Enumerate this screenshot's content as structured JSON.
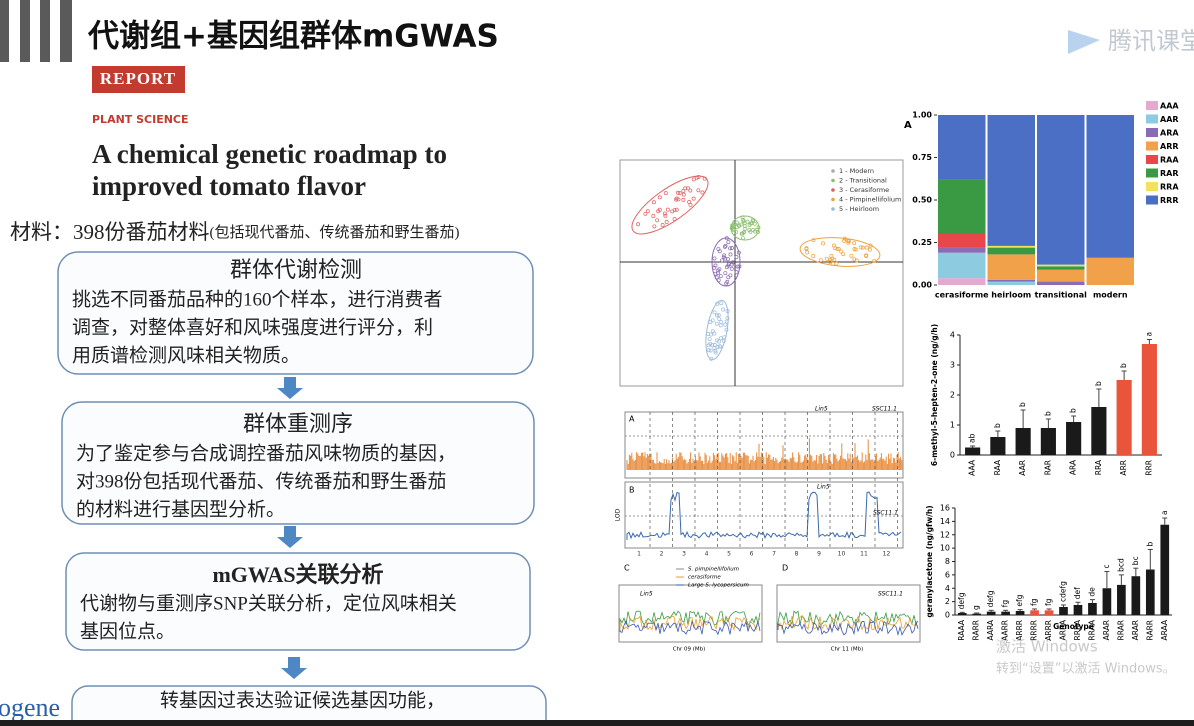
{
  "header": {
    "title": "代谢组+基因组群体mGWAS",
    "logo": "腾讯课堂"
  },
  "paper": {
    "label": "REPORT",
    "section": "PLANT SCIENCE",
    "title_lines": [
      "A chemical genetic roadmap to",
      "improved tomato flavor"
    ]
  },
  "material": {
    "text": "材料：398份番茄材料",
    "note": "(包括现代番茄、传统番茄和野生番茄)"
  },
  "steps": [
    {
      "title": "群体代谢检测",
      "lines": [
        "挑选不同番茄品种的160个样本，进行消费者",
        "调查，对整体喜好和风味强度进行评分，利",
        "用质谱检测风味相关物质。"
      ]
    },
    {
      "title": "群体重测序",
      "lines": [
        "为了鉴定参与合成调控番茄风味物质的基因，",
        "对398份包括现代番茄、传统番茄和野生番茄",
        "的材料进行基因型分析。"
      ]
    },
    {
      "title": "mGWAS关联分析",
      "lines": [
        "代谢物与重测序SNP关联分析，定位风味相关",
        "基因位点。"
      ]
    },
    {
      "lines": [
        "转基因过表达验证候选基因功能，"
      ]
    }
  ],
  "footer": {
    "logo": "ogene",
    "watermark": [
      "激活 Windows",
      "转到“设置”以激活 Windows。"
    ]
  },
  "figures": {
    "pca": {
      "legend": [
        "1 - Modern",
        "2 - Transitional",
        "3 - Cerasiforme",
        "4 - Pimpinellifolium",
        "5 - Heirloom"
      ]
    },
    "gwas": {
      "panels": [
        "A",
        "B",
        "C",
        "D"
      ],
      "peaks": [
        "Lin5",
        "SSC11.1"
      ],
      "ylabel": "LOD",
      "chromosomes": [
        1,
        2,
        3,
        4,
        5,
        6,
        7,
        8,
        9,
        10,
        11,
        12
      ],
      "legend": [
        "S. pimpinellifolium",
        "cerasiforme",
        "Large S. lycopersicum"
      ],
      "xlabels": [
        "Chr 09 (Mb)",
        "Chr 11 (Mb)"
      ]
    },
    "composition": {
      "panel": "A",
      "categories": [
        "cerasiforme",
        "heirloom",
        "transitional",
        "modern"
      ],
      "ylim": [
        0,
        1
      ],
      "yticks": [
        {
          "value": 0,
          "label": "0.00"
        },
        {
          "value": 0.25,
          "label": "0.25"
        },
        {
          "value": 0.5,
          "label": "0.50"
        },
        {
          "value": 0.75,
          "label": "0.75"
        },
        {
          "value": 1,
          "label": "1.00"
        }
      ],
      "series": [
        {
          "name": "AAA",
          "color": "#e3a9cf",
          "values": [
            0.04,
            0,
            0,
            0
          ]
        },
        {
          "name": "AAR",
          "color": "#8ccbe0",
          "values": [
            0.15,
            0.02,
            0,
            0
          ]
        },
        {
          "name": "ARA",
          "color": "#8a6bb5",
          "values": [
            0.03,
            0.01,
            0.02,
            0
          ]
        },
        {
          "name": "ARR",
          "color": "#f0a14a",
          "values": [
            0,
            0.15,
            0.07,
            0.16
          ]
        },
        {
          "name": "RAA",
          "color": "#e8464a",
          "values": [
            0.08,
            0,
            0,
            0
          ]
        },
        {
          "name": "RAR",
          "color": "#3a9a44",
          "values": [
            0.32,
            0.04,
            0.02,
            0
          ]
        },
        {
          "name": "RRA",
          "color": "#f2e25a",
          "values": [
            0,
            0.01,
            0.01,
            0
          ]
        },
        {
          "name": "RRR",
          "color": "#4a6fc4",
          "values": [
            0.38,
            0.77,
            0.88,
            0.84
          ]
        }
      ]
    },
    "methylheptenone": {
      "ylabel": "6-methyl-5-hepten-2-one (ng/g/h)",
      "categories": [
        "AAA",
        "RAA",
        "AAR",
        "RAR",
        "ARA",
        "RRA",
        "ARR",
        "RRR"
      ],
      "values": [
        0.25,
        0.6,
        0.9,
        0.9,
        1.1,
        1.6,
        2.5,
        3.7
      ],
      "errors": [
        0.05,
        0.2,
        0.6,
        0.3,
        0.2,
        0.6,
        0.3,
        0.15
      ],
      "letters": [
        "ab",
        "b",
        "b",
        "b",
        "b",
        "b",
        "b",
        "a"
      ],
      "colors": [
        "#1a1a1a",
        "#1a1a1a",
        "#1a1a1a",
        "#1a1a1a",
        "#1a1a1a",
        "#1a1a1a",
        "#e8553a",
        "#e8553a"
      ],
      "ylim": [
        0,
        4
      ],
      "yticks": [
        0,
        1,
        2,
        3,
        4
      ]
    },
    "geranylacetone": {
      "ylabel": "geranylacetone (ng/gfw/h)",
      "xlabel": "Genotype",
      "categories": [
        "RAAA",
        "RARR",
        "AARA",
        "AARR",
        "ARRR",
        "RRRR",
        "ARRR",
        "ARRA",
        "RRRA",
        "RRAA",
        "ARAR",
        "RRAR",
        "ARAR",
        "RARR",
        "ARAA"
      ],
      "values": [
        0.3,
        0.2,
        0.5,
        0.5,
        0.6,
        0.7,
        0.7,
        1.2,
        1.5,
        1.8,
        4,
        4.5,
        5.8,
        6.8,
        13.5
      ],
      "errors": [
        0.1,
        0.1,
        0.2,
        0.2,
        0.2,
        0.2,
        0.2,
        0.3,
        0.4,
        0.5,
        2.5,
        1.5,
        1.2,
        3,
        1
      ],
      "letters": [
        "defg",
        "g",
        "defg",
        "fg",
        "efg",
        "fg",
        "fg",
        "cdefg",
        "def",
        "de",
        "c",
        "bcd",
        "bc",
        "b",
        "a"
      ],
      "colors": [
        "#1a1a1a",
        "#1a1a1a",
        "#1a1a1a",
        "#1a1a1a",
        "#1a1a1a",
        "#e8553a",
        "#e8553a",
        "#1a1a1a",
        "#1a1a1a",
        "#1a1a1a",
        "#1a1a1a",
        "#1a1a1a",
        "#1a1a1a",
        "#1a1a1a",
        "#1a1a1a"
      ],
      "ylim": [
        0,
        16
      ],
      "yticks": [
        0,
        2,
        4,
        6,
        8,
        10,
        12,
        14,
        16
      ]
    }
  }
}
